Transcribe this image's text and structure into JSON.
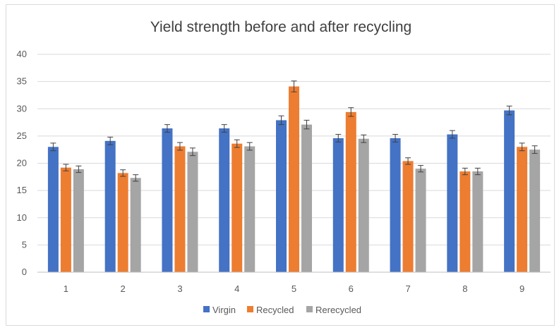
{
  "chart_data": {
    "type": "bar",
    "title": "Yield strength before and after recycling",
    "xlabel": "",
    "ylabel": "",
    "categories": [
      "1",
      "2",
      "3",
      "4",
      "5",
      "6",
      "7",
      "8",
      "9"
    ],
    "series": [
      {
        "name": "Virgin",
        "color": "#4472c4",
        "values": [
          23.0,
          24.1,
          26.4,
          26.4,
          27.9,
          24.6,
          24.6,
          25.3,
          29.7
        ],
        "errors": [
          0.7,
          0.7,
          0.7,
          0.7,
          0.8,
          0.7,
          0.7,
          0.7,
          0.8
        ]
      },
      {
        "name": "Recycled",
        "color": "#ed7d31",
        "values": [
          19.2,
          18.2,
          23.1,
          23.6,
          34.1,
          29.4,
          20.4,
          18.5,
          23.0
        ],
        "errors": [
          0.6,
          0.6,
          0.7,
          0.7,
          1.0,
          0.8,
          0.6,
          0.6,
          0.7
        ]
      },
      {
        "name": "Rerecycled",
        "color": "#a5a5a5",
        "values": [
          18.9,
          17.3,
          22.1,
          23.1,
          27.1,
          24.5,
          19.0,
          18.5,
          22.5
        ],
        "errors": [
          0.6,
          0.6,
          0.7,
          0.7,
          0.8,
          0.7,
          0.6,
          0.6,
          0.7
        ]
      }
    ],
    "ylim": [
      0,
      40
    ],
    "yticks": [
      0,
      5,
      10,
      15,
      20,
      25,
      30,
      35,
      40
    ],
    "grid": true,
    "legend_position": "bottom",
    "error_bars": true
  }
}
